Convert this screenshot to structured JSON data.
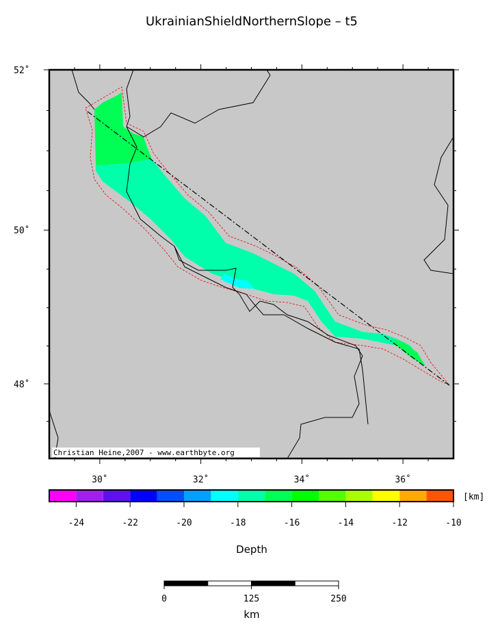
{
  "title": "UkrainianShieldNorthernSlope – t5",
  "map": {
    "lonlim": [
      29,
      37
    ],
    "latlim": [
      47,
      52
    ],
    "lon_ticks": [
      {
        "value": 30,
        "label": "30˚"
      },
      {
        "value": 32,
        "label": "32˚"
      },
      {
        "value": 34,
        "label": "34˚"
      },
      {
        "value": 36,
        "label": "36˚"
      }
    ],
    "lat_ticks": [
      {
        "value": 48,
        "label": "48˚"
      },
      {
        "value": 50,
        "label": "50˚"
      },
      {
        "value": 52,
        "label": "52˚"
      }
    ],
    "lon_minor": [
      29.5,
      30.5,
      31,
      31.5,
      32.5,
      33,
      33.5,
      34.5,
      35,
      35.5,
      36.5
    ],
    "lat_minor": [
      47.5,
      48.5,
      49,
      49.5,
      50.5,
      51,
      51.5
    ],
    "credit": "Christian Heine,2007 - www.earthbyte.org"
  },
  "colorbar": {
    "range": [
      -25,
      -10
    ],
    "ticks": [
      -24,
      -22,
      -20,
      -18,
      -16,
      -14,
      -12,
      -10
    ],
    "colors": [
      "#ff00ff",
      "#a020f0",
      "#6010f0",
      "#0000ff",
      "#0050ff",
      "#00a0ff",
      "#00ffff",
      "#00ffaa",
      "#00ff55",
      "#00ff00",
      "#55ff00",
      "#aaff00",
      "#ffff00",
      "#ffaa00",
      "#ff5500"
    ],
    "unit": "[km]",
    "label": "Depth"
  },
  "scalebar": {
    "range": [
      0,
      250
    ],
    "ticks": [
      0,
      125,
      250
    ],
    "label": "km"
  }
}
